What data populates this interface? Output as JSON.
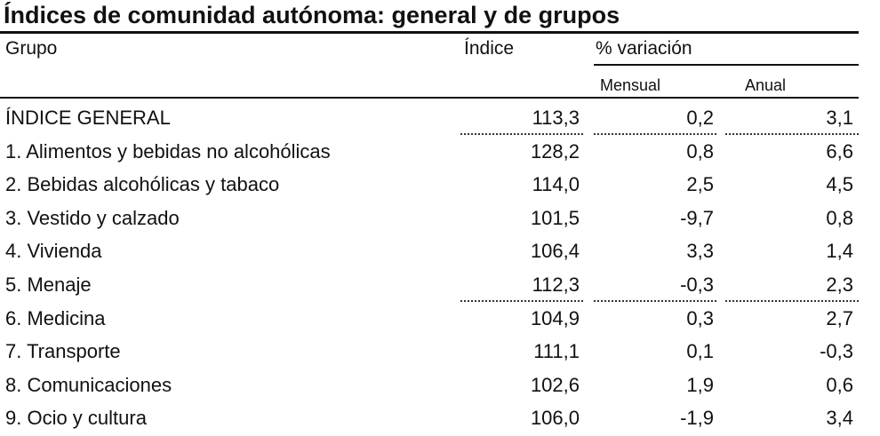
{
  "header": {
    "title": "Índices de comunidad autónoma: general y de grupos"
  },
  "table": {
    "columns": [
      "Grupo",
      "Índice",
      "% variación"
    ],
    "subcolumns": [
      "Mensual",
      "Anual"
    ],
    "rows": [
      [
        "ÍNDICE GENERAL",
        "113,3",
        "0,2",
        "3,1"
      ],
      [
        "1. Alimentos y bebidas no alcohólicas",
        "128,2",
        "0,8",
        "6,6"
      ],
      [
        "2. Bebidas alcohólicas y tabaco",
        "114,0",
        "2,5",
        "4,5"
      ],
      [
        "3. Vestido y calzado",
        "101,5",
        "-9,7",
        "0,8"
      ],
      [
        "4. Vivienda",
        "106,4",
        "3,3",
        "1,4"
      ],
      [
        "5. Menaje",
        "112,3",
        "-0,3",
        "2,3"
      ],
      [
        "6. Medicina",
        "104,9",
        "0,3",
        "2,7"
      ],
      [
        "7. Transporte",
        "111,1",
        "0,1",
        "-0,3"
      ],
      [
        "8. Comunicaciones",
        "102,6",
        "1,9",
        "0,6"
      ],
      [
        "9. Ocio y cultura",
        "106,0",
        "-1,9",
        "3,4"
      ]
    ]
  }
}
